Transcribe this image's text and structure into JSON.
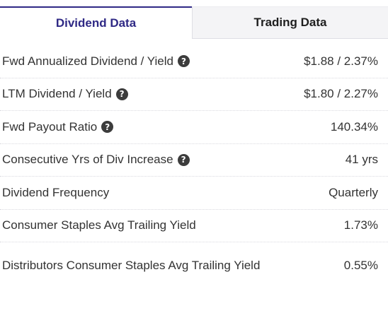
{
  "tabs": {
    "dividend": "Dividend Data",
    "trading": "Trading Data"
  },
  "rows": [
    {
      "label": "Fwd Annualized Dividend / Yield",
      "value": "$1.88 / 2.37%",
      "help_icon": "question-circle-icon"
    },
    {
      "label": "LTM Dividend / Yield",
      "value": "$1.80 / 2.27%",
      "help_icon": "question-circle-icon"
    },
    {
      "label": "Fwd Payout Ratio",
      "value": "140.34%",
      "help_icon": "question-circle-icon"
    },
    {
      "label": "Consecutive Yrs of Div Increase",
      "value": "41 yrs",
      "help_icon": "question-circle-icon"
    },
    {
      "label": "Dividend Frequency",
      "value": "Quarterly"
    },
    {
      "label": "Consumer Staples Avg Trailing Yield",
      "value": "1.73%"
    },
    {
      "label": "Distributors Consumer Staples Avg Trailing Yield",
      "value": "0.55%"
    }
  ],
  "help_glyph": "?",
  "colors": {
    "active_tab_text": "#2f2985",
    "active_tab_border": "#2f2985",
    "inactive_tab_bg": "#f4f4f6",
    "row_text": "#333333",
    "help_icon_bg": "#3c3c3c"
  }
}
